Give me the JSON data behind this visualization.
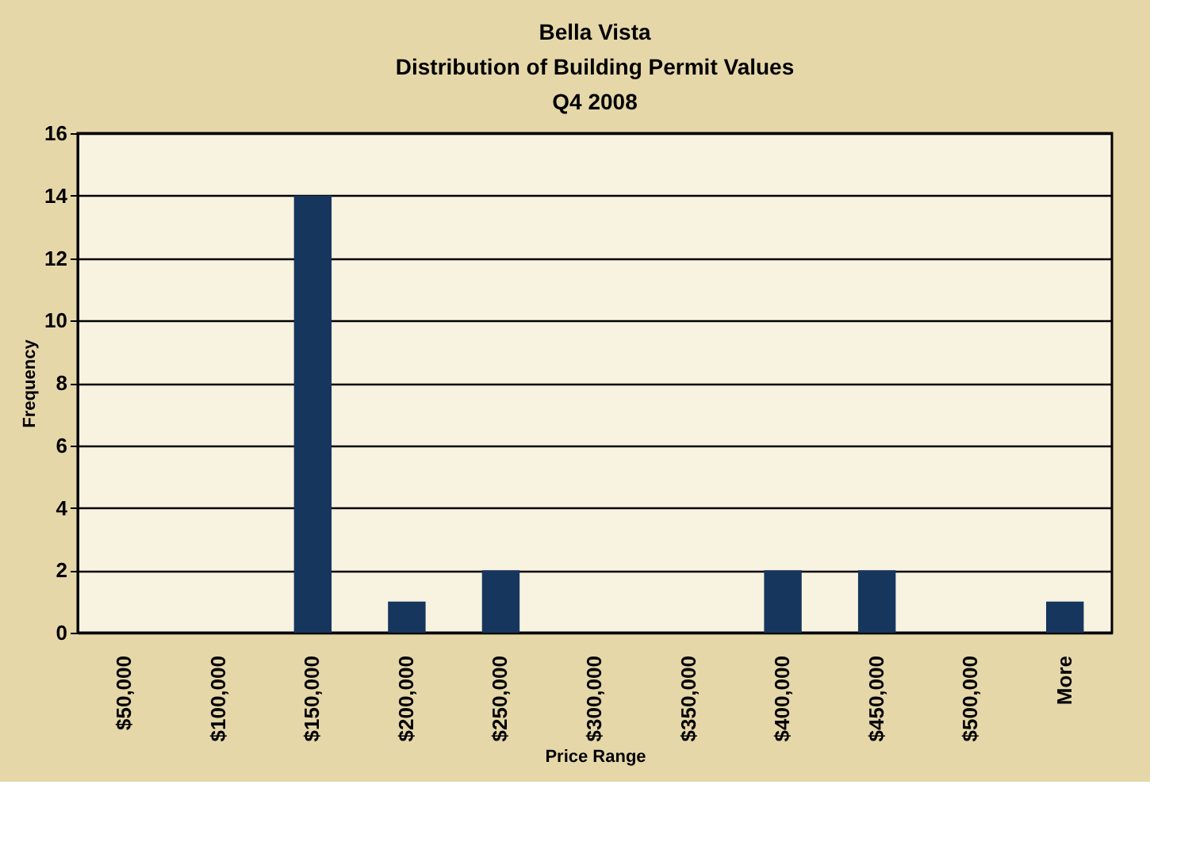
{
  "chart_data": {
    "type": "bar",
    "title": "Bella Vista\nDistribution of Building Permit Values\nQ4 2008",
    "xlabel": "Price Range",
    "ylabel": "Frequency",
    "categories": [
      "$50,000",
      "$100,000",
      "$150,000",
      "$200,000",
      "$250,000",
      "$300,000",
      "$350,000",
      "$400,000",
      "$450,000",
      "$500,000",
      "More"
    ],
    "values": [
      0,
      0,
      14,
      1,
      2,
      0,
      0,
      2,
      2,
      0,
      1
    ],
    "color": "#17365d",
    "ylim": [
      0,
      16
    ],
    "yticks": [
      0,
      2,
      4,
      6,
      8,
      10,
      12,
      14,
      16
    ],
    "grid": "y"
  }
}
